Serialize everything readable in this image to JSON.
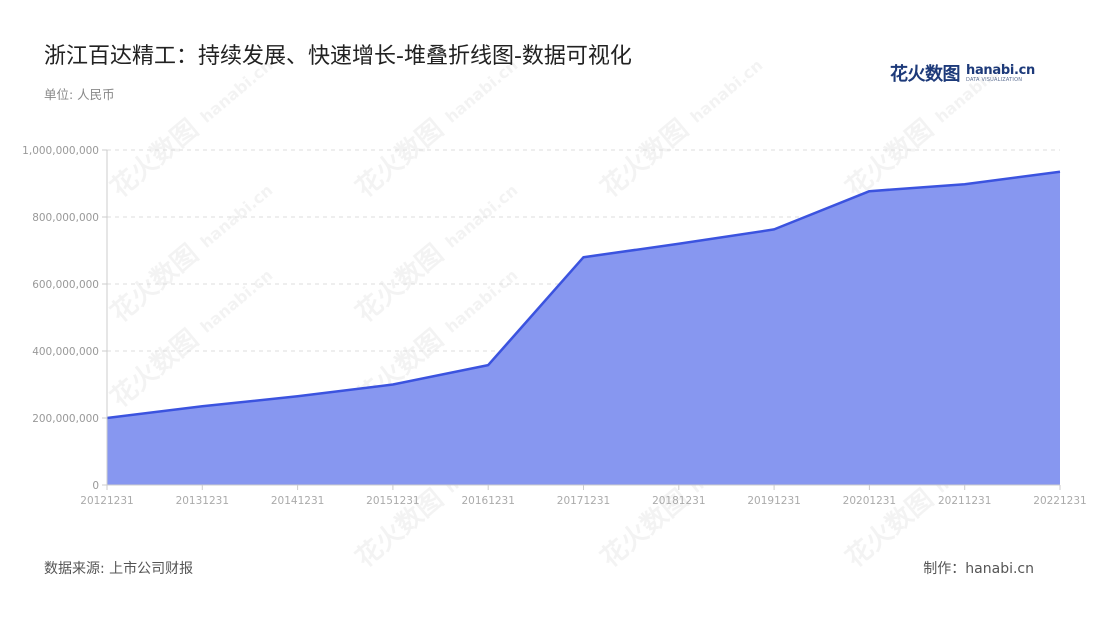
{
  "header": {
    "title": "浙江百达精工：持续发展、快速增长-堆叠折线图-数据可视化",
    "unit": "单位: 人民币"
  },
  "logo": {
    "cn": "花火数图",
    "en": "hanabi.cn",
    "sub": "DATA VISUALIZATION"
  },
  "footer": {
    "source": "数据来源: 上市公司财报",
    "credit": "制作：hanabi.cn"
  },
  "colors": {
    "area_fill": "#8797f0",
    "line": "#3b53df",
    "grid": "#dddddd",
    "axis": "#cccccc"
  },
  "chart_data": {
    "type": "area",
    "title": "浙江百达精工：持续发展、快速增长-堆叠折线图-数据可视化",
    "ylabel": "单位: 人民币",
    "xlabel": "",
    "x": [
      "20121231",
      "20131231",
      "20141231",
      "20151231",
      "20161231",
      "20171231",
      "20181231",
      "20191231",
      "20201231",
      "20211231",
      "20221231"
    ],
    "series": [
      {
        "values": [
          200000000,
          235000000,
          265000000,
          300000000,
          358000000,
          680000000,
          720000000,
          763000000,
          877000000,
          898000000,
          935000000
        ]
      }
    ],
    "ylim": [
      0,
      1000000000
    ],
    "yticks": [
      0,
      200000000,
      400000000,
      600000000,
      800000000,
      1000000000
    ],
    "ytick_labels": [
      "0",
      "200,000,000",
      "400,000,000",
      "600,000,000",
      "800,000,000",
      "1,000,000,000"
    ],
    "grid": true,
    "legend": "none"
  }
}
